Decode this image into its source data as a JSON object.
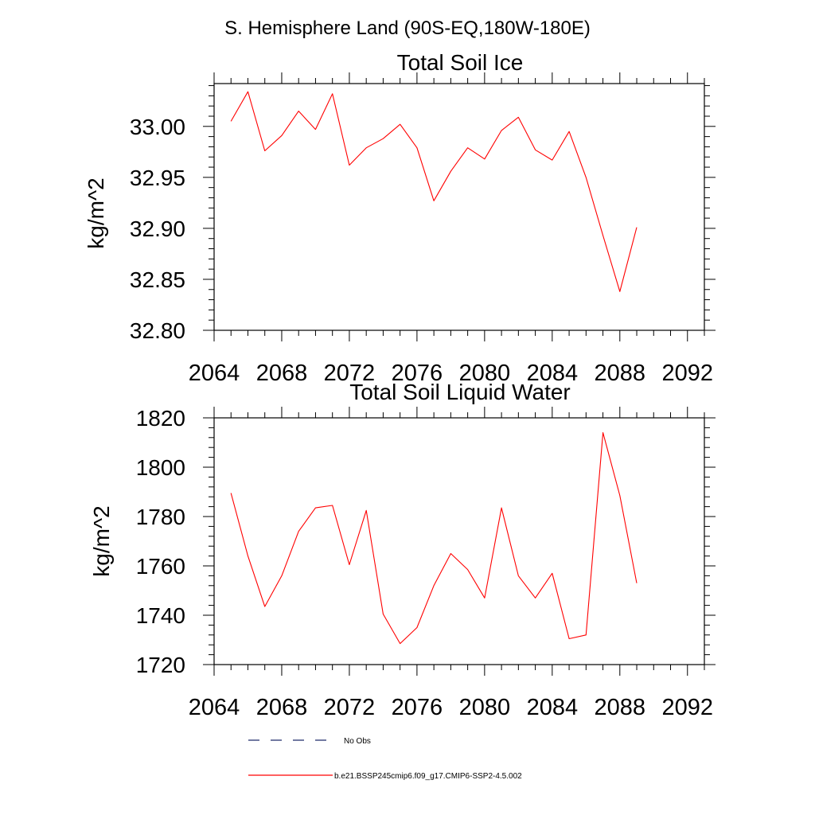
{
  "page_title": "S. Hemisphere Land (90S-EQ,180W-180E)",
  "colors": {
    "series": "#ff0000",
    "obs": "#1f2a6b",
    "axis": "#000000"
  },
  "chart_data": [
    {
      "type": "line",
      "title": "Total Soil Ice",
      "ylabel": "kg/m^2",
      "xlabel": "",
      "xlim": [
        2064,
        2093
      ],
      "ylim": [
        32.8,
        33.042
      ],
      "x_ticks": [
        "2064",
        "2068",
        "2072",
        "2076",
        "2080",
        "2084",
        "2088",
        "2092"
      ],
      "y_ticks": [
        "32.80",
        "32.85",
        "32.90",
        "32.95",
        "33.00"
      ],
      "grid": false,
      "series": [
        {
          "name": "b.e21.BSSP245cmip6.f09_g17.CMIP6-SSP2-4.5.002",
          "color": "#ff0000",
          "x": [
            2065,
            2066,
            2067,
            2068,
            2069,
            2070,
            2071,
            2072,
            2073,
            2074,
            2075,
            2076,
            2077,
            2078,
            2079,
            2080,
            2081,
            2082,
            2083,
            2084,
            2085,
            2086,
            2087,
            2088,
            2089
          ],
          "values": [
            33.005,
            33.034,
            32.976,
            32.991,
            33.015,
            32.997,
            33.032,
            32.962,
            32.979,
            32.988,
            33.002,
            32.979,
            32.927,
            32.956,
            32.979,
            32.968,
            32.996,
            33.009,
            32.977,
            32.967,
            32.995,
            32.95,
            32.893,
            32.838,
            32.901
          ]
        }
      ]
    },
    {
      "type": "line",
      "title": "Total Soil Liquid Water",
      "ylabel": "kg/m^2",
      "xlabel": "",
      "xlim": [
        2064,
        2093
      ],
      "ylim": [
        1720,
        1820
      ],
      "x_ticks": [
        "2064",
        "2068",
        "2072",
        "2076",
        "2080",
        "2084",
        "2088",
        "2092"
      ],
      "y_ticks": [
        "1720",
        "1740",
        "1760",
        "1780",
        "1800",
        "1820"
      ],
      "grid": false,
      "series": [
        {
          "name": "b.e21.BSSP245cmip6.f09_g17.CMIP6-SSP2-4.5.002",
          "color": "#ff0000",
          "x": [
            2065,
            2066,
            2067,
            2068,
            2069,
            2070,
            2071,
            2072,
            2073,
            2074,
            2075,
            2076,
            2077,
            2078,
            2079,
            2080,
            2081,
            2082,
            2083,
            2084,
            2085,
            2086,
            2087,
            2088,
            2089
          ],
          "values": [
            1789.5,
            1764,
            1743.5,
            1756,
            1774,
            1783.5,
            1784.5,
            1760.5,
            1782.5,
            1740.5,
            1728.5,
            1735,
            1752,
            1765,
            1758.5,
            1747,
            1783.5,
            1756,
            1747,
            1757,
            1730.5,
            1732,
            1814,
            1788.5,
            1753
          ]
        }
      ]
    }
  ],
  "legend": {
    "placement": "bottom",
    "entries": [
      {
        "label": "No Obs",
        "style": "dashed",
        "color": "#1f2a6b"
      },
      {
        "label": "b.e21.BSSP245cmip6.f09_g17.CMIP6-SSP2-4.5.002",
        "style": "solid",
        "color": "#ff0000"
      }
    ]
  }
}
